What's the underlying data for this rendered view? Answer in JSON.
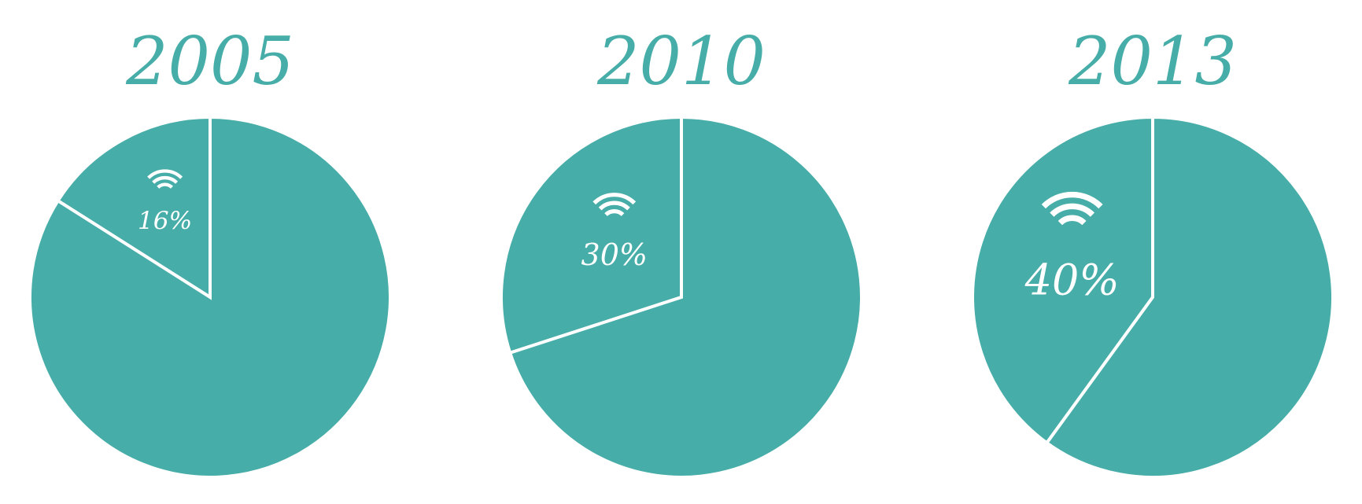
{
  "colors": {
    "pie_fill": "#47ada8",
    "divider": "#ffffff",
    "year_text": "#47ada8",
    "label_text": "#ffffff",
    "background": "#ffffff"
  },
  "chart_data": [
    {
      "type": "pie",
      "title": "2005",
      "slices": [
        {
          "value": 16,
          "label": "16%",
          "icon": "wifi-icon"
        },
        {
          "value": 84,
          "label": ""
        }
      ]
    },
    {
      "type": "pie",
      "title": "2010",
      "slices": [
        {
          "value": 30,
          "label": "30%",
          "icon": "wifi-icon"
        },
        {
          "value": 70,
          "label": ""
        }
      ]
    },
    {
      "type": "pie",
      "title": "2013",
      "slices": [
        {
          "value": 40,
          "label": "40%",
          "icon": "wifi-icon"
        },
        {
          "value": 60,
          "label": ""
        }
      ]
    }
  ]
}
